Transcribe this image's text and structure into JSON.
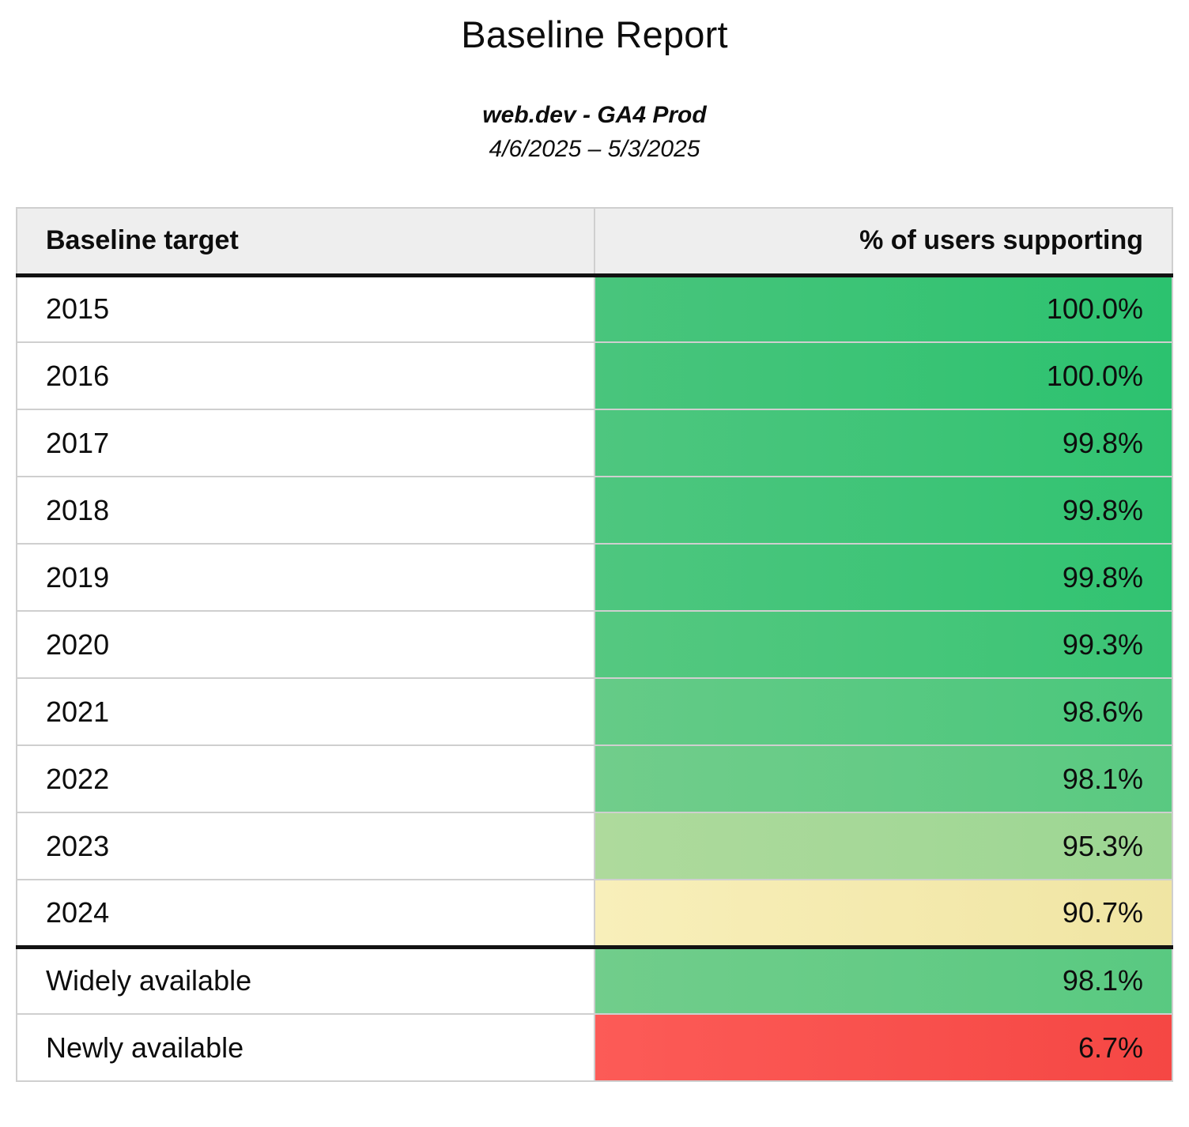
{
  "report": {
    "title": "Baseline Report",
    "property": "web.dev - GA4 Prod",
    "date_range": "4/6/2025 – 5/3/2025"
  },
  "table": {
    "columns": [
      "Baseline target",
      "% of users supporting"
    ],
    "rows": [
      {
        "target": "2015",
        "value": "100.0%",
        "bg": {
          "from": "#49c57c",
          "to": "#2cc26f"
        }
      },
      {
        "target": "2016",
        "value": "100.0%",
        "bg": {
          "from": "#49c57c",
          "to": "#2cc26f"
        }
      },
      {
        "target": "2017",
        "value": "99.8%",
        "bg": {
          "from": "#4ec67f",
          "to": "#31c371"
        }
      },
      {
        "target": "2018",
        "value": "99.8%",
        "bg": {
          "from": "#4ec67f",
          "to": "#31c371"
        }
      },
      {
        "target": "2019",
        "value": "99.8%",
        "bg": {
          "from": "#4ec67f",
          "to": "#31c371"
        }
      },
      {
        "target": "2020",
        "value": "99.3%",
        "bg": {
          "from": "#55c880",
          "to": "#3ac475"
        }
      },
      {
        "target": "2021",
        "value": "98.6%",
        "bg": {
          "from": "#65cb87",
          "to": "#4ac77c"
        }
      },
      {
        "target": "2022",
        "value": "98.1%",
        "bg": {
          "from": "#71cd8b",
          "to": "#59c981"
        }
      },
      {
        "target": "2023",
        "value": "95.3%",
        "bg": {
          "from": "#aeda9c",
          "to": "#9cd693"
        }
      },
      {
        "target": "2024",
        "value": "90.7%",
        "bg": {
          "from": "#f8efba",
          "to": "#f0e5a3"
        }
      },
      {
        "target": "Widely available",
        "value": "98.1%",
        "bg": {
          "from": "#71cd8b",
          "to": "#59c981"
        }
      },
      {
        "target": "Newly available",
        "value": "6.7%",
        "bg": {
          "from": "#fc5b57",
          "to": "#f54744"
        }
      }
    ]
  },
  "colors": {
    "header_background": "#eeeeee",
    "row_divider": "#cfcfcf",
    "section_divider": "#121212",
    "text": "#0d0d0d"
  },
  "chart_data": {
    "type": "table",
    "title": "Baseline Report",
    "subtitle": "web.dev - GA4 Prod",
    "date_range": "4/6/2025 – 5/3/2025",
    "columns": [
      "Baseline target",
      "% of users supporting"
    ],
    "categories": [
      "2015",
      "2016",
      "2017",
      "2018",
      "2019",
      "2020",
      "2021",
      "2022",
      "2023",
      "2024",
      "Widely available",
      "Newly available"
    ],
    "values": [
      100.0,
      100.0,
      99.8,
      99.8,
      99.8,
      99.3,
      98.6,
      98.1,
      95.3,
      90.7,
      98.1,
      6.7
    ],
    "value_unit": "%",
    "layout_hints": {
      "cell_color_scale": "green (high) to yellow (mid) to red (low) heatmap on value column",
      "section_break_after_row": "2024"
    }
  }
}
